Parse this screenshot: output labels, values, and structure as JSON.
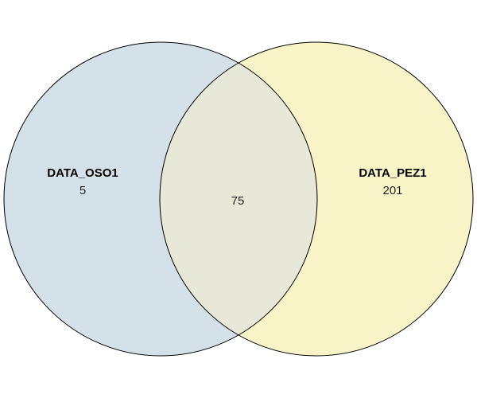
{
  "venn": {
    "sets": [
      {
        "name": "DATA_OSO1",
        "only_count": "5",
        "color": "#d5e1e9"
      },
      {
        "name": "DATA_PEZ1",
        "only_count": "201",
        "color": "#f9f3c8"
      }
    ],
    "intersection": {
      "count": "75",
      "color": "#e8e8d8"
    },
    "outline_color": "#000000"
  }
}
